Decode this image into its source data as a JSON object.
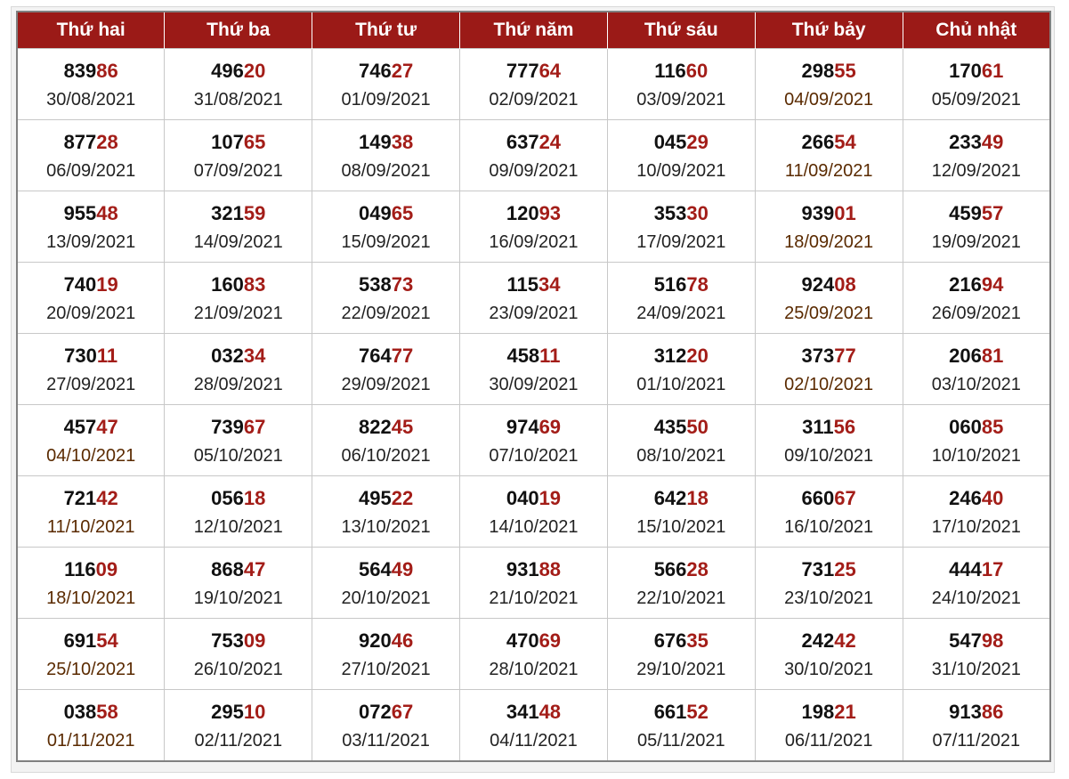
{
  "colors": {
    "header_bg": "#9b1a17",
    "header_text": "#ffffff",
    "tail_digits": "#a31d18",
    "highlight_orange": "#f6c245",
    "highlight_light_yellow": "#fdeaaa",
    "highlight_green": "#e4f0da"
  },
  "headers": [
    "Thứ hai",
    "Thứ ba",
    "Thứ tư",
    "Thứ năm",
    "Thứ sáu",
    "Thứ bảy",
    "Chủ nhật"
  ],
  "rows": [
    [
      {
        "head": "839",
        "tail": "86",
        "date": "30/08/2021",
        "highlight": ""
      },
      {
        "head": "496",
        "tail": "20",
        "date": "31/08/2021",
        "highlight": ""
      },
      {
        "head": "746",
        "tail": "27",
        "date": "01/09/2021",
        "highlight": ""
      },
      {
        "head": "777",
        "tail": "64",
        "date": "02/09/2021",
        "highlight": ""
      },
      {
        "head": "116",
        "tail": "60",
        "date": "03/09/2021",
        "highlight": ""
      },
      {
        "head": "298",
        "tail": "55",
        "date": "04/09/2021",
        "highlight": "orange"
      },
      {
        "head": "170",
        "tail": "61",
        "date": "05/09/2021",
        "highlight": "green"
      }
    ],
    [
      {
        "head": "877",
        "tail": "28",
        "date": "06/09/2021",
        "highlight": ""
      },
      {
        "head": "107",
        "tail": "65",
        "date": "07/09/2021",
        "highlight": ""
      },
      {
        "head": "149",
        "tail": "38",
        "date": "08/09/2021",
        "highlight": ""
      },
      {
        "head": "637",
        "tail": "24",
        "date": "09/09/2021",
        "highlight": ""
      },
      {
        "head": "045",
        "tail": "29",
        "date": "10/09/2021",
        "highlight": ""
      },
      {
        "head": "266",
        "tail": "54",
        "date": "11/09/2021",
        "highlight": "orange"
      },
      {
        "head": "233",
        "tail": "49",
        "date": "12/09/2021",
        "highlight": "green"
      }
    ],
    [
      {
        "head": "955",
        "tail": "48",
        "date": "13/09/2021",
        "highlight": ""
      },
      {
        "head": "321",
        "tail": "59",
        "date": "14/09/2021",
        "highlight": ""
      },
      {
        "head": "049",
        "tail": "65",
        "date": "15/09/2021",
        "highlight": ""
      },
      {
        "head": "120",
        "tail": "93",
        "date": "16/09/2021",
        "highlight": ""
      },
      {
        "head": "353",
        "tail": "30",
        "date": "17/09/2021",
        "highlight": ""
      },
      {
        "head": "939",
        "tail": "01",
        "date": "18/09/2021",
        "highlight": "orange"
      },
      {
        "head": "459",
        "tail": "57",
        "date": "19/09/2021",
        "highlight": "green"
      }
    ],
    [
      {
        "head": "740",
        "tail": "19",
        "date": "20/09/2021",
        "highlight": ""
      },
      {
        "head": "160",
        "tail": "83",
        "date": "21/09/2021",
        "highlight": ""
      },
      {
        "head": "538",
        "tail": "73",
        "date": "22/09/2021",
        "highlight": ""
      },
      {
        "head": "115",
        "tail": "34",
        "date": "23/09/2021",
        "highlight": ""
      },
      {
        "head": "516",
        "tail": "78",
        "date": "24/09/2021",
        "highlight": ""
      },
      {
        "head": "924",
        "tail": "08",
        "date": "25/09/2021",
        "highlight": "orange"
      },
      {
        "head": "216",
        "tail": "94",
        "date": "26/09/2021",
        "highlight": "green"
      }
    ],
    [
      {
        "head": "730",
        "tail": "11",
        "date": "27/09/2021",
        "highlight": ""
      },
      {
        "head": "032",
        "tail": "34",
        "date": "28/09/2021",
        "highlight": ""
      },
      {
        "head": "764",
        "tail": "77",
        "date": "29/09/2021",
        "highlight": ""
      },
      {
        "head": "458",
        "tail": "11",
        "date": "30/09/2021",
        "highlight": ""
      },
      {
        "head": "312",
        "tail": "20",
        "date": "01/10/2021",
        "highlight": ""
      },
      {
        "head": "373",
        "tail": "77",
        "date": "02/10/2021",
        "highlight": "orange"
      },
      {
        "head": "206",
        "tail": "81",
        "date": "03/10/2021",
        "highlight": "green"
      }
    ],
    [
      {
        "head": "457",
        "tail": "47",
        "date": "04/10/2021",
        "highlight": "orange"
      },
      {
        "head": "739",
        "tail": "67",
        "date": "05/10/2021",
        "highlight": ""
      },
      {
        "head": "822",
        "tail": "45",
        "date": "06/10/2021",
        "highlight": ""
      },
      {
        "head": "974",
        "tail": "69",
        "date": "07/10/2021",
        "highlight": ""
      },
      {
        "head": "435",
        "tail": "50",
        "date": "08/10/2021",
        "highlight": ""
      },
      {
        "head": "311",
        "tail": "56",
        "date": "09/10/2021",
        "highlight": "light"
      },
      {
        "head": "060",
        "tail": "85",
        "date": "10/10/2021",
        "highlight": "green"
      }
    ],
    [
      {
        "head": "721",
        "tail": "42",
        "date": "11/10/2021",
        "highlight": "orange"
      },
      {
        "head": "056",
        "tail": "18",
        "date": "12/10/2021",
        "highlight": ""
      },
      {
        "head": "495",
        "tail": "22",
        "date": "13/10/2021",
        "highlight": ""
      },
      {
        "head": "040",
        "tail": "19",
        "date": "14/10/2021",
        "highlight": ""
      },
      {
        "head": "642",
        "tail": "18",
        "date": "15/10/2021",
        "highlight": ""
      },
      {
        "head": "660",
        "tail": "67",
        "date": "16/10/2021",
        "highlight": "green"
      },
      {
        "head": "246",
        "tail": "40",
        "date": "17/10/2021",
        "highlight": "green"
      }
    ],
    [
      {
        "head": "116",
        "tail": "09",
        "date": "18/10/2021",
        "highlight": "orange"
      },
      {
        "head": "868",
        "tail": "47",
        "date": "19/10/2021",
        "highlight": ""
      },
      {
        "head": "564",
        "tail": "49",
        "date": "20/10/2021",
        "highlight": ""
      },
      {
        "head": "931",
        "tail": "88",
        "date": "21/10/2021",
        "highlight": ""
      },
      {
        "head": "566",
        "tail": "28",
        "date": "22/10/2021",
        "highlight": ""
      },
      {
        "head": "731",
        "tail": "25",
        "date": "23/10/2021",
        "highlight": "green"
      },
      {
        "head": "444",
        "tail": "17",
        "date": "24/10/2021",
        "highlight": "green"
      }
    ],
    [
      {
        "head": "691",
        "tail": "54",
        "date": "25/10/2021",
        "highlight": "orange"
      },
      {
        "head": "753",
        "tail": "09",
        "date": "26/10/2021",
        "highlight": ""
      },
      {
        "head": "920",
        "tail": "46",
        "date": "27/10/2021",
        "highlight": ""
      },
      {
        "head": "470",
        "tail": "69",
        "date": "28/10/2021",
        "highlight": ""
      },
      {
        "head": "676",
        "tail": "35",
        "date": "29/10/2021",
        "highlight": ""
      },
      {
        "head": "242",
        "tail": "42",
        "date": "30/10/2021",
        "highlight": "green"
      },
      {
        "head": "547",
        "tail": "98",
        "date": "31/10/2021",
        "highlight": "green"
      }
    ],
    [
      {
        "head": "038",
        "tail": "58",
        "date": "01/11/2021",
        "highlight": "orange"
      },
      {
        "head": "295",
        "tail": "10",
        "date": "02/11/2021",
        "highlight": ""
      },
      {
        "head": "072",
        "tail": "67",
        "date": "03/11/2021",
        "highlight": ""
      },
      {
        "head": "341",
        "tail": "48",
        "date": "04/11/2021",
        "highlight": ""
      },
      {
        "head": "661",
        "tail": "52",
        "date": "05/11/2021",
        "highlight": ""
      },
      {
        "head": "198",
        "tail": "21",
        "date": "06/11/2021",
        "highlight": "green"
      },
      {
        "head": "913",
        "tail": "86",
        "date": "07/11/2021",
        "highlight": "green"
      }
    ]
  ]
}
